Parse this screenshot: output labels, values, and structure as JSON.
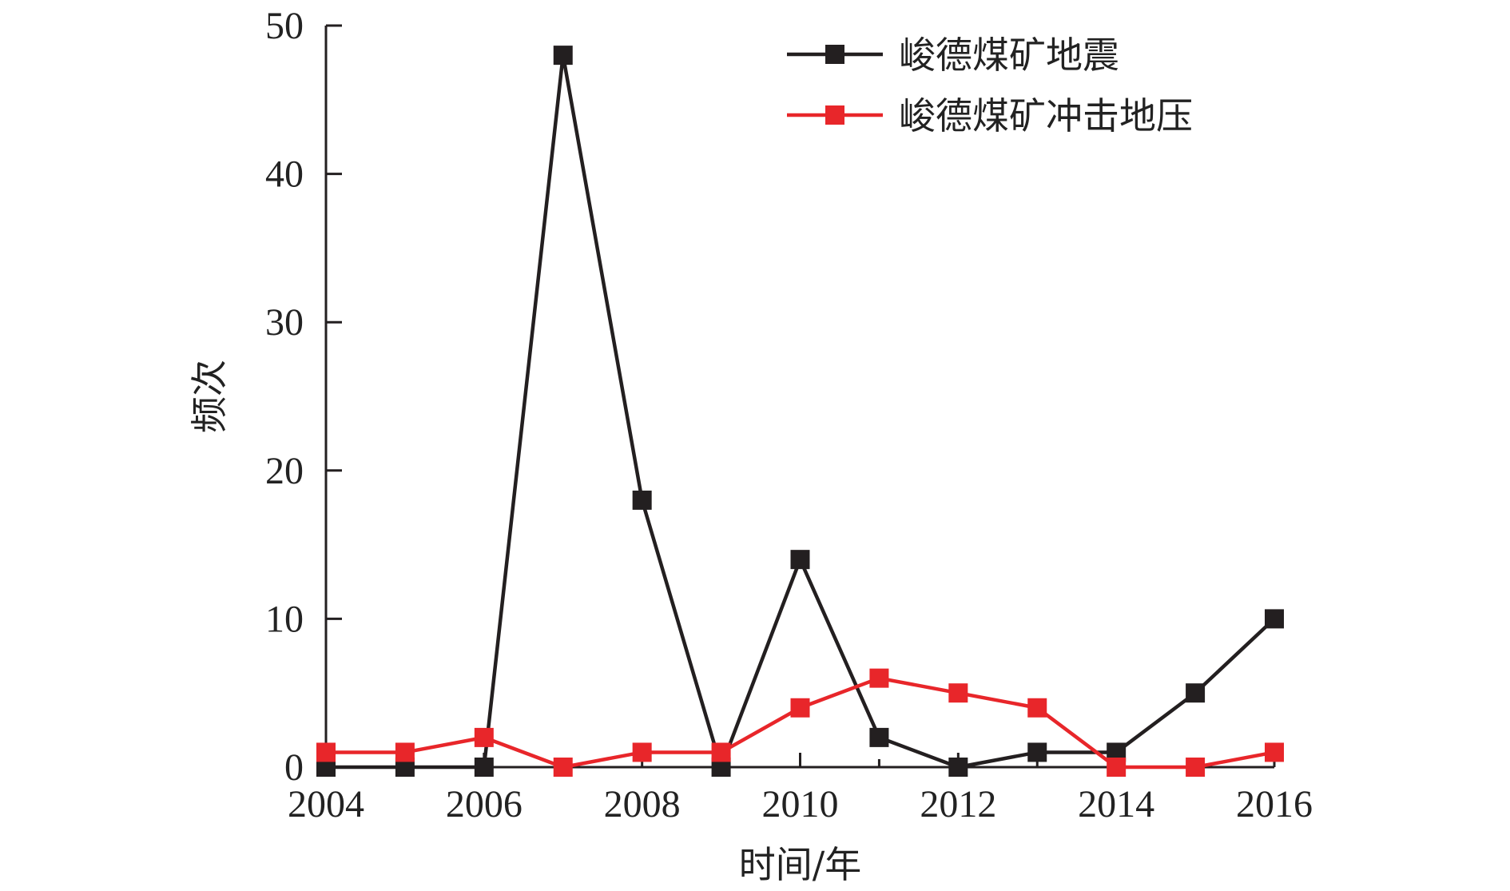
{
  "chart_data": {
    "type": "line",
    "x": [
      2004,
      2005,
      2006,
      2007,
      2008,
      2009,
      2010,
      2011,
      2012,
      2013,
      2014,
      2015,
      2016
    ],
    "xlabel": "时间/年",
    "ylabel": "频次",
    "xlim": [
      2004,
      2016
    ],
    "ylim": [
      0,
      50
    ],
    "xticks": [
      2004,
      2006,
      2008,
      2010,
      2012,
      2014,
      2016
    ],
    "yticks": [
      0,
      10,
      20,
      30,
      40,
      50
    ],
    "grid": false,
    "legend_position": "top-right",
    "series": [
      {
        "name": "峻德煤矿地震",
        "color": "#231f20",
        "marker": "square",
        "values": [
          0,
          0,
          0,
          48,
          18,
          0,
          14,
          2,
          0,
          1,
          1,
          5,
          10
        ]
      },
      {
        "name": "峻德煤矿冲击地压",
        "color": "#e8262a",
        "marker": "square",
        "values": [
          1,
          1,
          2,
          0,
          1,
          1,
          4,
          6,
          5,
          4,
          0,
          0,
          1
        ]
      }
    ]
  }
}
